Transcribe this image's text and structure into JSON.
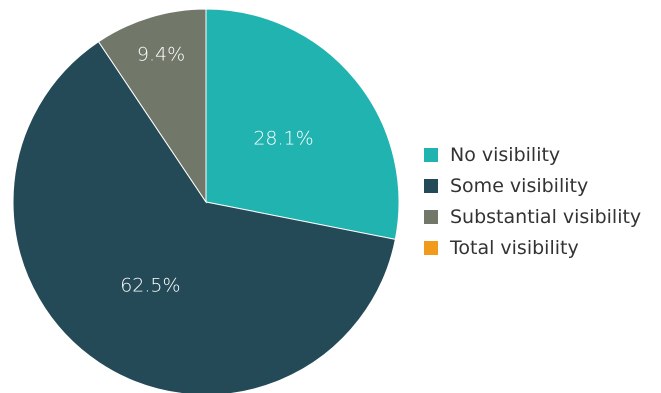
{
  "chart_data": {
    "type": "pie",
    "categories": [
      "No visibility",
      "Some visibility",
      "Substantial visibility",
      "Total visibility"
    ],
    "values": [
      28.1,
      62.5,
      9.4,
      0
    ],
    "labels": [
      "28.1%",
      "62.5%",
      "9.4%",
      ""
    ],
    "colors": [
      "#20b3b0",
      "#244a58",
      "#717769",
      "#f29a1c"
    ],
    "title": "",
    "legend_position": "right",
    "start_angle": "top, clockwise"
  }
}
